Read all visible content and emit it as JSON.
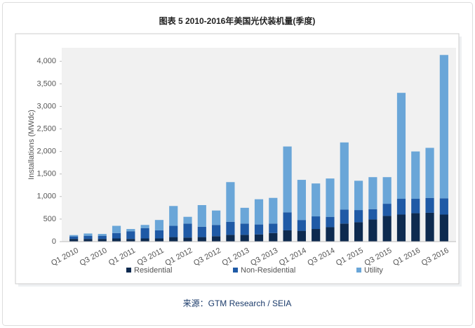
{
  "chart_data": {
    "type": "stacked_bar",
    "title": "图表 5  2010-2016年美国光伏装机量(季度)",
    "source": "来源：GTM Research / SEIA",
    "y_label": "Installations (MWdc)",
    "categories": [
      "Q1 2010",
      null,
      "Q3 2010",
      null,
      "Q1 2011",
      null,
      "Q3 2011",
      null,
      "Q1 2012",
      null,
      "Q3 2012",
      null,
      "Q1 2013",
      null,
      "Q3 2013",
      null,
      "Q1 2014",
      null,
      "Q3 2014",
      null,
      "Q1 2015",
      null,
      "Q3 2015",
      null,
      "Q1 2016",
      null,
      "Q3 2016"
    ],
    "series": [
      {
        "name": "Residential",
        "color": "#0d2a4f",
        "values": [
          60,
          60,
          60,
          70,
          60,
          70,
          70,
          100,
          90,
          100,
          120,
          150,
          150,
          160,
          190,
          250,
          240,
          280,
          320,
          400,
          430,
          490,
          570,
          600,
          630,
          640,
          600
        ]
      },
      {
        "name": "Non-Residential",
        "color": "#1f5aa6",
        "values": [
          55,
          70,
          70,
          120,
          170,
          230,
          180,
          250,
          310,
          230,
          250,
          290,
          250,
          220,
          210,
          400,
          240,
          280,
          230,
          310,
          270,
          230,
          270,
          350,
          320,
          330,
          360
        ]
      },
      {
        "name": "Utility",
        "color": "#6aa6d8",
        "values": [
          30,
          50,
          40,
          160,
          50,
          70,
          230,
          440,
          150,
          480,
          320,
          880,
          350,
          560,
          570,
          1460,
          890,
          730,
          850,
          1490,
          650,
          710,
          590,
          2350,
          1050,
          1110,
          3180
        ]
      }
    ],
    "ylim": [
      0,
      4300
    ],
    "yticks": [
      0,
      500,
      {
        "value": 1000,
        "label": "1,000"
      },
      {
        "value": 1500,
        "label": "1,500"
      },
      {
        "value": 2000,
        "label": "2,000"
      },
      {
        "value": 2500,
        "label": "2,500"
      },
      {
        "value": 3000,
        "label": "3,000"
      },
      {
        "value": 3500,
        "label": "3,500"
      },
      {
        "value": 4000,
        "label": "4,000"
      }
    ],
    "legend": "bottom"
  }
}
